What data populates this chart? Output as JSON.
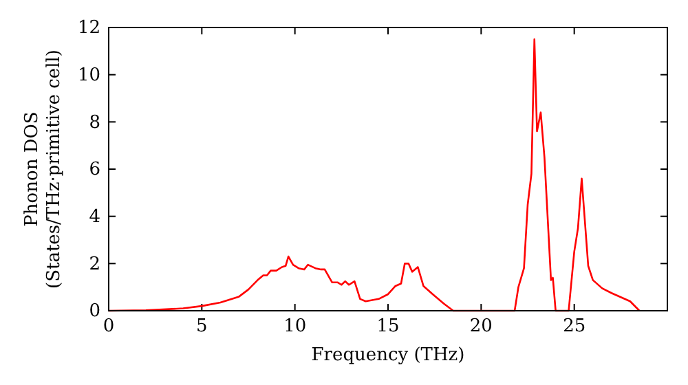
{
  "chart_data": {
    "type": "line",
    "xlabel": "Frequency (THz)",
    "ylabel": "Phonon DOS\n(States/THz·primitive cell)",
    "xlim": [
      0,
      30
    ],
    "ylim": [
      0,
      12
    ],
    "xticks": [
      0,
      5,
      10,
      15,
      20,
      25
    ],
    "yticks": [
      0,
      2,
      4,
      6,
      8,
      10,
      12
    ],
    "grid": false,
    "series": [
      {
        "color": "#ff0000",
        "x": [
          0,
          2,
          4,
          5,
          6,
          7,
          7.5,
          8,
          8.3,
          8.5,
          8.7,
          9,
          9.3,
          9.5,
          9.65,
          9.9,
          10.2,
          10.5,
          10.7,
          11.1,
          11.4,
          11.6,
          12,
          12.3,
          12.5,
          12.7,
          12.9,
          13.2,
          13.5,
          13.8,
          14.5,
          15,
          15.4,
          15.7,
          15.9,
          16.1,
          16.3,
          16.6,
          16.9,
          17.4,
          18,
          18.5,
          21.8,
          22.0,
          22.3,
          22.5,
          22.7,
          22.86,
          23.0,
          23.2,
          23.4,
          23.75,
          23.85,
          24.0,
          24.7,
          25.0,
          25.2,
          25.4,
          25.75,
          26,
          26.5,
          27,
          28,
          28.5
        ],
        "values": [
          0,
          0.02,
          0.1,
          0.2,
          0.35,
          0.6,
          0.9,
          1.3,
          1.5,
          1.5,
          1.7,
          1.7,
          1.85,
          1.9,
          2.3,
          1.95,
          1.8,
          1.75,
          1.95,
          1.8,
          1.75,
          1.75,
          1.2,
          1.2,
          1.1,
          1.25,
          1.1,
          1.25,
          0.5,
          0.4,
          0.5,
          0.7,
          1.05,
          1.15,
          2.0,
          2.0,
          1.65,
          1.85,
          1.05,
          0.7,
          0.3,
          0,
          0,
          1.0,
          1.8,
          4.5,
          5.8,
          11.5,
          7.6,
          8.4,
          6.5,
          1.3,
          1.4,
          0,
          0,
          2.5,
          3.5,
          5.6,
          1.9,
          1.3,
          0.95,
          0.75,
          0.4,
          0
        ]
      }
    ]
  }
}
